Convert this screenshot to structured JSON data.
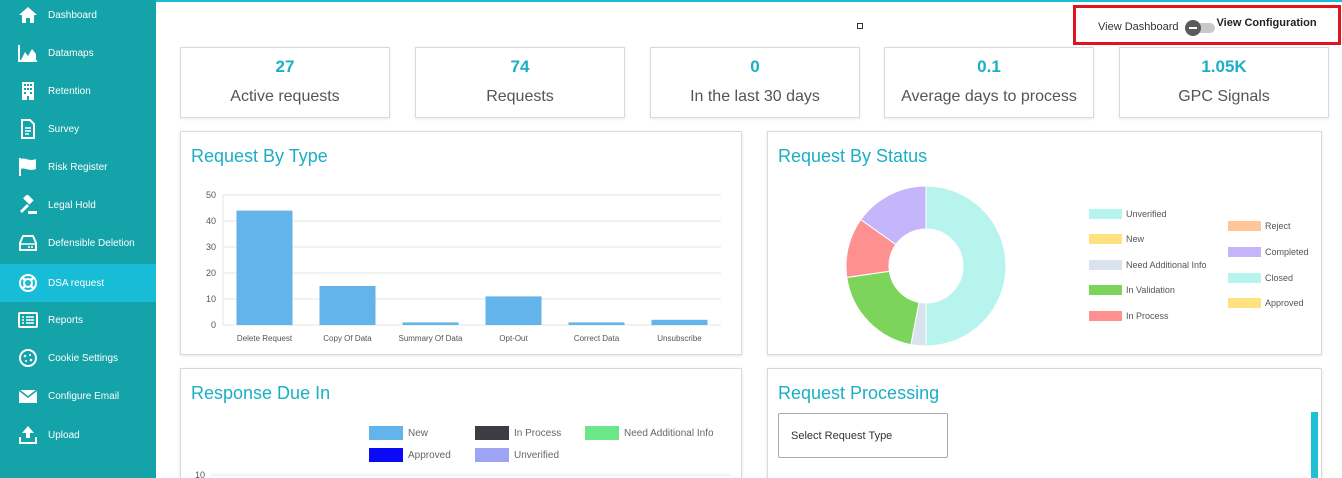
{
  "sidebar": {
    "items": [
      {
        "label": "Dashboard",
        "icon": "home-icon"
      },
      {
        "label": "Datamaps",
        "icon": "area-chart-icon"
      },
      {
        "label": "Retention",
        "icon": "building-icon"
      },
      {
        "label": "Survey",
        "icon": "document-icon"
      },
      {
        "label": "Risk Register",
        "icon": "flag-icon"
      },
      {
        "label": "Legal Hold",
        "icon": "gavel-icon"
      },
      {
        "label": "Defensible Deletion",
        "icon": "hard-drive-icon"
      },
      {
        "label": "DSA request",
        "icon": "lifebuoy-icon"
      },
      {
        "label": "Reports",
        "icon": "list-icon"
      },
      {
        "label": "Cookie Settings",
        "icon": "cookie-icon"
      },
      {
        "label": "Configure Email",
        "icon": "envelope-icon"
      },
      {
        "label": "Upload",
        "icon": "upload-icon"
      }
    ],
    "active_index": 7,
    "bg": "#14a3a8",
    "active_bg": "#17bcd6"
  },
  "toggle": {
    "left_label": "View Dashboard",
    "right_label": "View Configuration"
  },
  "stats": [
    {
      "value": "27",
      "label": "Active requests"
    },
    {
      "value": "74",
      "label": "Requests"
    },
    {
      "value": "0",
      "label": "In the last 30 days"
    },
    {
      "value": "0.1",
      "label": "Average days to process"
    },
    {
      "value": "1.05K",
      "label": "GPC Signals"
    }
  ],
  "panels": {
    "type": {
      "title": "Request By Type"
    },
    "status": {
      "title": "Request By Status"
    },
    "due": {
      "title": "Response Due In"
    },
    "processing": {
      "title": "Request Processing",
      "select_placeholder": "Select Request Type"
    }
  },
  "chart_data": [
    {
      "type": "bar",
      "title": "Request By Type",
      "categories": [
        "Delete Request",
        "Copy Of Data",
        "Summary Of Data",
        "Opt-Out",
        "Correct Data",
        "Unsubscribe"
      ],
      "values": [
        44,
        15,
        1,
        11,
        1,
        2
      ],
      "ylim": [
        0,
        50
      ],
      "yticks": [
        0,
        10,
        20,
        30,
        40,
        50
      ],
      "grid": true,
      "color": "#62b4ea"
    },
    {
      "type": "pie",
      "title": "Request By Status",
      "donut": true,
      "labels": [
        "Unverified",
        "New",
        "Need Additional Info",
        "In Validation",
        "In Process",
        "Reject",
        "Completed",
        "Closed",
        "Approved"
      ],
      "values": [
        33,
        0,
        2,
        13,
        8,
        0,
        10,
        0,
        0
      ],
      "colors": [
        "#b8f4ee",
        "#ffe180",
        "#d8e3ee",
        "#7cd45a",
        "#ff9090",
        "#ffc799",
        "#c5b5fb",
        "#b8f4ee",
        "#ffe180"
      ],
      "legend": "right"
    },
    {
      "type": "bar",
      "title": "Response Due In",
      "series": [
        {
          "name": "New",
          "color": "#62b4ea"
        },
        {
          "name": "In Process",
          "color": "#3c3c42"
        },
        {
          "name": "Need Additional Info",
          "color": "#6be78a"
        },
        {
          "name": "Approved",
          "color": "#0a0af5"
        },
        {
          "name": "Unverified",
          "color": "#9ea4f4"
        }
      ],
      "yticks": [
        10
      ]
    }
  ]
}
